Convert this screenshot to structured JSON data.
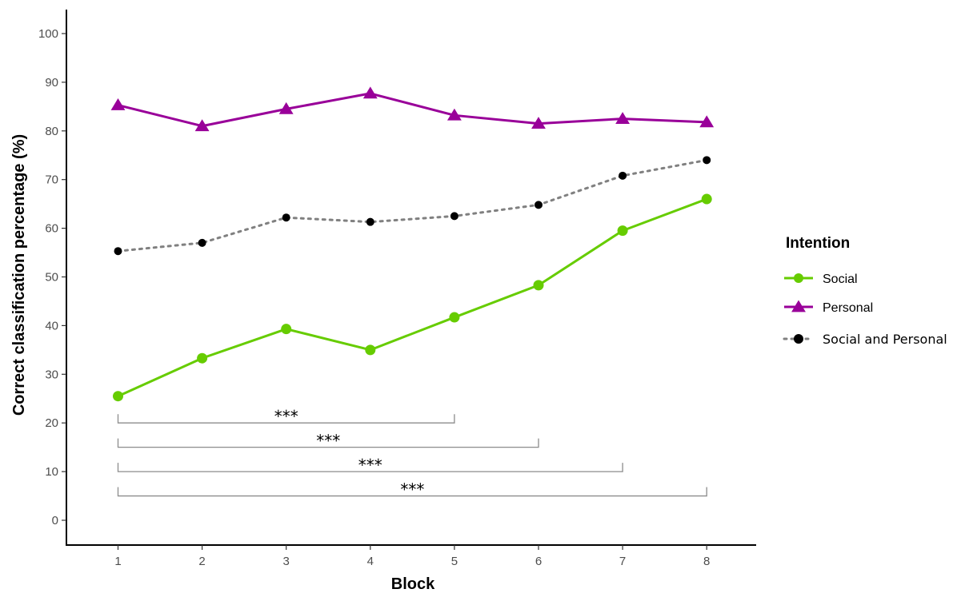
{
  "chart_data": {
    "type": "line",
    "xlabel": "Block",
    "ylabel": "Correct classification percentage (%)",
    "x": [
      1,
      2,
      3,
      4,
      5,
      6,
      7,
      8
    ],
    "x_ticks": [
      "1",
      "2",
      "3",
      "4",
      "5",
      "6",
      "7",
      "8"
    ],
    "ylim": [
      0,
      100
    ],
    "y_ticks": [
      "0",
      "10",
      "20",
      "30",
      "40",
      "50",
      "60",
      "70",
      "80",
      "90",
      "100"
    ],
    "grid": false,
    "legend": {
      "title": "Intention",
      "position": "right"
    },
    "series": [
      {
        "name": "Social",
        "color": "#66cc00",
        "marker": "circle",
        "line_style": "solid",
        "values": [
          25.5,
          33.3,
          39.3,
          35.0,
          41.7,
          48.3,
          59.5,
          66.0
        ]
      },
      {
        "name": "Personal",
        "color": "#990099",
        "marker": "triangle",
        "line_style": "solid",
        "values": [
          85.3,
          81.0,
          84.5,
          87.7,
          83.2,
          81.5,
          82.5,
          81.8
        ]
      },
      {
        "name": "Social and Personal",
        "color": "#000000",
        "line_color": "#808080",
        "marker": "circle",
        "line_style": "dotted",
        "values": [
          55.3,
          57.0,
          62.2,
          61.3,
          62.5,
          64.8,
          70.8,
          74.0
        ]
      }
    ],
    "significance_brackets": [
      {
        "from": 1,
        "to": 5,
        "y": 20,
        "label": "***"
      },
      {
        "from": 1,
        "to": 6,
        "y": 15,
        "label": "***"
      },
      {
        "from": 1,
        "to": 7,
        "y": 10,
        "label": "***"
      },
      {
        "from": 1,
        "to": 8,
        "y": 5,
        "label": "***"
      }
    ]
  }
}
